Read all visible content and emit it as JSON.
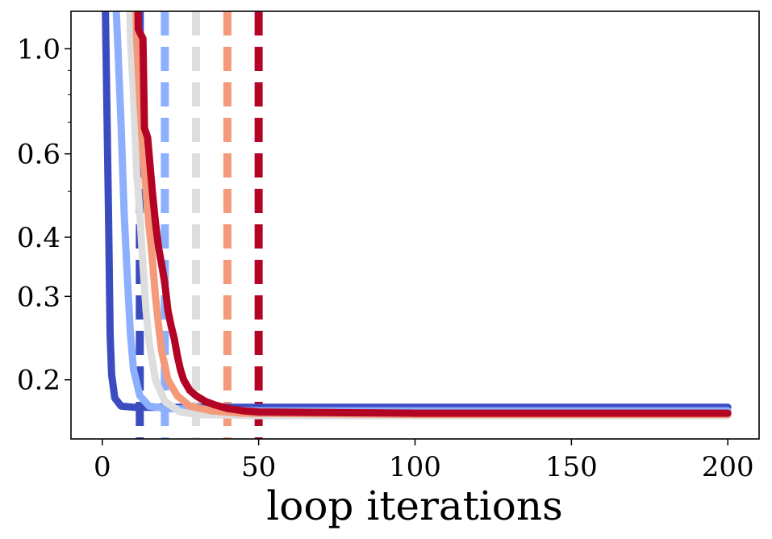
{
  "chart_data": {
    "type": "line",
    "title": "",
    "xlabel": "loop iterations",
    "ylabel": "",
    "xlim": [
      -10,
      210
    ],
    "ylim": [
      0.15,
      1.2
    ],
    "yscale": "log",
    "grid": false,
    "x_ticks": [
      0,
      50,
      100,
      150,
      200
    ],
    "x_tick_labels": [
      "0",
      "50",
      "100",
      "150",
      "200"
    ],
    "y_ticks": [
      0.2,
      0.3,
      0.4,
      0.6,
      1.0
    ],
    "y_tick_labels": [
      "0.2",
      "0.3",
      "0.4",
      "0.6",
      "1.0"
    ],
    "y_minor_ticks": [
      0.5,
      0.7,
      0.8,
      0.9
    ],
    "series": [
      {
        "color": "#3b4cc0",
        "points": [
          [
            0,
            2.0
          ],
          [
            1,
            1.2
          ],
          [
            2,
            0.45
          ],
          [
            2.5,
            0.25
          ],
          [
            3,
            0.205
          ],
          [
            4,
            0.183
          ],
          [
            6,
            0.176
          ],
          [
            10,
            0.175
          ],
          [
            50,
            0.175
          ],
          [
            100,
            0.175
          ],
          [
            150,
            0.175
          ],
          [
            200,
            0.175
          ]
        ]
      },
      {
        "color": "#8db0fe",
        "points": [
          [
            3,
            2.0
          ],
          [
            5,
            1.0
          ],
          [
            6,
            0.7
          ],
          [
            7,
            0.45
          ],
          [
            8,
            0.33
          ],
          [
            9,
            0.25
          ],
          [
            10,
            0.21
          ],
          [
            12,
            0.185
          ],
          [
            15,
            0.176
          ],
          [
            20,
            0.174
          ],
          [
            50,
            0.172
          ],
          [
            100,
            0.172
          ],
          [
            150,
            0.172
          ],
          [
            200,
            0.172
          ]
        ]
      },
      {
        "color": "#dddddd",
        "points": [
          [
            8,
            2.0
          ],
          [
            9,
            1.05
          ],
          [
            10,
            0.8
          ],
          [
            11,
            0.55
          ],
          [
            12,
            0.45
          ],
          [
            13,
            0.35
          ],
          [
            14,
            0.28
          ],
          [
            15,
            0.24
          ],
          [
            17,
            0.2
          ],
          [
            20,
            0.18
          ],
          [
            25,
            0.171
          ],
          [
            30,
            0.169
          ],
          [
            50,
            0.168
          ],
          [
            200,
            0.168
          ]
        ]
      },
      {
        "color": "#f49a7b",
        "points": [
          [
            10,
            2.0
          ],
          [
            11,
            1.05
          ],
          [
            12,
            0.78
          ],
          [
            13,
            0.6
          ],
          [
            14,
            0.5
          ],
          [
            15,
            0.42
          ],
          [
            16,
            0.36
          ],
          [
            17,
            0.3
          ],
          [
            18,
            0.26
          ],
          [
            19,
            0.23
          ],
          [
            21,
            0.2
          ],
          [
            24,
            0.185
          ],
          [
            28,
            0.176
          ],
          [
            35,
            0.172
          ],
          [
            45,
            0.17
          ],
          [
            100,
            0.169
          ],
          [
            200,
            0.169
          ]
        ]
      },
      {
        "color": "#b40426",
        "points": [
          [
            11,
            2.0
          ],
          [
            11.5,
            1.1
          ],
          [
            13,
            1.05
          ],
          [
            13.5,
            0.68
          ],
          [
            14.5,
            0.65
          ],
          [
            16,
            0.5
          ],
          [
            17,
            0.43
          ],
          [
            18,
            0.38
          ],
          [
            19,
            0.35
          ],
          [
            20,
            0.32
          ],
          [
            21,
            0.28
          ],
          [
            22,
            0.26
          ],
          [
            23,
            0.245
          ],
          [
            24,
            0.225
          ],
          [
            25,
            0.21
          ],
          [
            26,
            0.2
          ],
          [
            28,
            0.19
          ],
          [
            30,
            0.185
          ],
          [
            33,
            0.18
          ],
          [
            36,
            0.177
          ],
          [
            40,
            0.174
          ],
          [
            45,
            0.172
          ],
          [
            50,
            0.171
          ],
          [
            100,
            0.17
          ],
          [
            200,
            0.17
          ]
        ]
      }
    ],
    "vlines": [
      {
        "x": 12,
        "color": "#3b4cc0",
        "style": "dashed"
      },
      {
        "x": 20,
        "color": "#8db0fe",
        "style": "dashed"
      },
      {
        "x": 30,
        "color": "#dddddd",
        "style": "dashed"
      },
      {
        "x": 40,
        "color": "#f49a7b",
        "style": "dashed"
      },
      {
        "x": 50,
        "color": "#b40426",
        "style": "dashed"
      }
    ]
  }
}
